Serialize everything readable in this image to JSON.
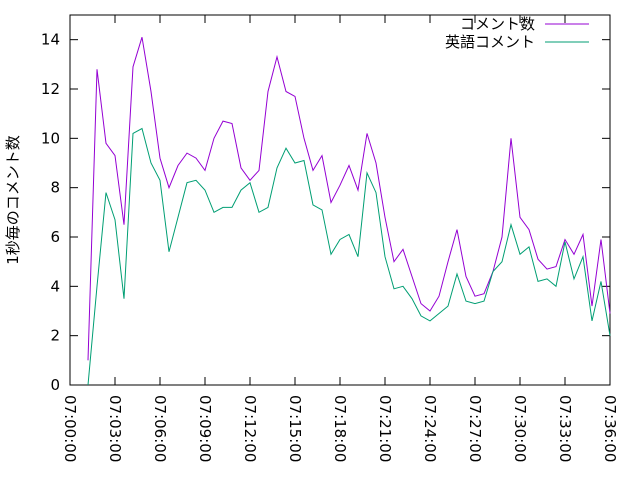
{
  "chart_data": {
    "type": "line",
    "ylabel": "1秒毎のコメント数",
    "ylim": [
      0,
      15
    ],
    "yticks": [
      0,
      2,
      4,
      6,
      8,
      10,
      12,
      14
    ],
    "xlim": [
      "07:00:00",
      "07:36:00"
    ],
    "xticks": [
      "07:00:00",
      "07:03:00",
      "07:06:00",
      "07:09:00",
      "07:12:00",
      "07:15:00",
      "07:18:00",
      "07:21:00",
      "07:24:00",
      "07:27:00",
      "07:30:00",
      "07:33:00",
      "07:36:00"
    ],
    "grid": false,
    "legend_position": "top-right",
    "x": [
      "07:01:12",
      "07:01:48",
      "07:02:24",
      "07:03:00",
      "07:03:36",
      "07:04:12",
      "07:04:48",
      "07:05:24",
      "07:06:00",
      "07:06:36",
      "07:07:12",
      "07:07:48",
      "07:08:24",
      "07:09:00",
      "07:09:36",
      "07:10:12",
      "07:10:48",
      "07:11:24",
      "07:12:00",
      "07:12:36",
      "07:13:12",
      "07:13:48",
      "07:14:24",
      "07:15:00",
      "07:15:36",
      "07:16:12",
      "07:16:48",
      "07:17:24",
      "07:18:00",
      "07:18:36",
      "07:19:12",
      "07:19:48",
      "07:20:24",
      "07:21:00",
      "07:21:36",
      "07:22:12",
      "07:22:48",
      "07:23:24",
      "07:24:00",
      "07:24:36",
      "07:25:12",
      "07:25:48",
      "07:26:24",
      "07:27:00",
      "07:27:36",
      "07:28:12",
      "07:28:48",
      "07:29:24",
      "07:30:00",
      "07:30:36",
      "07:31:12",
      "07:31:48",
      "07:32:24",
      "07:33:00",
      "07:33:36",
      "07:34:12",
      "07:34:48",
      "07:35:24",
      "07:36:00"
    ],
    "series": [
      {
        "name": "コメント数",
        "color": "#9400d3",
        "values": [
          1.0,
          12.8,
          9.8,
          9.3,
          6.5,
          12.9,
          14.1,
          11.9,
          9.2,
          8.0,
          8.9,
          9.4,
          9.2,
          8.7,
          10.0,
          10.7,
          10.6,
          8.8,
          8.3,
          8.7,
          11.9,
          13.3,
          11.9,
          11.7,
          10.0,
          8.7,
          9.3,
          7.4,
          8.1,
          8.9,
          7.9,
          10.2,
          9.0,
          6.8,
          5.0,
          5.5,
          4.4,
          3.3,
          3.0,
          3.6,
          5.0,
          6.3,
          4.4,
          3.6,
          3.7,
          4.6,
          6.0,
          10.0,
          6.8,
          6.3,
          5.1,
          4.7,
          4.8,
          5.9,
          5.3,
          6.1,
          3.2,
          5.9,
          2.9
        ]
      },
      {
        "name": "英語コメント",
        "color": "#009e73",
        "values": [
          0.0,
          4.0,
          7.8,
          6.7,
          3.5,
          10.2,
          10.4,
          9.0,
          8.3,
          5.4,
          6.8,
          8.2,
          8.3,
          7.9,
          7.0,
          7.2,
          7.2,
          7.9,
          8.2,
          7.0,
          7.2,
          8.8,
          9.6,
          9.0,
          9.1,
          7.3,
          7.1,
          5.3,
          5.9,
          6.1,
          5.2,
          8.6,
          7.8,
          5.2,
          3.9,
          4.0,
          3.5,
          2.8,
          2.6,
          2.9,
          3.2,
          4.5,
          3.4,
          3.3,
          3.4,
          4.6,
          5.0,
          6.5,
          5.3,
          5.6,
          4.2,
          4.3,
          4.0,
          5.8,
          4.3,
          5.2,
          2.6,
          4.2,
          2.0
        ]
      }
    ]
  }
}
